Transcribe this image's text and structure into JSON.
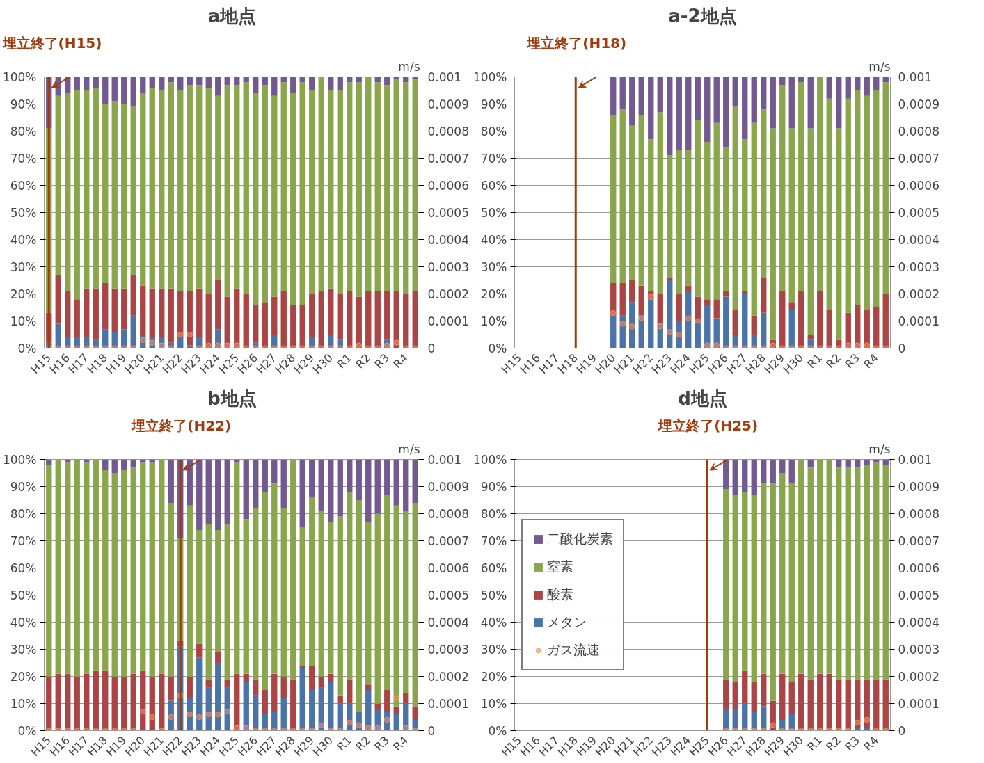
{
  "chart_data": [
    {
      "type": "bar",
      "title": "a地点",
      "y2label": "m/s",
      "stacked": true,
      "grid": "y",
      "legend": false,
      "categories": [
        "H15",
        null,
        "H16",
        null,
        "H17",
        null,
        "H18",
        null,
        "H19",
        null,
        "H20",
        null,
        "H21",
        null,
        "H22",
        null,
        "H23",
        null,
        "H24",
        null,
        "H25",
        null,
        "H26",
        null,
        "H27",
        null,
        "H28",
        null,
        "H29",
        null,
        "H30",
        null,
        "R1",
        null,
        "R2",
        null,
        "R3",
        null,
        "R4",
        null
      ],
      "ylim": [
        0,
        100
      ],
      "yticks": [
        {
          "value": 0,
          "label": "0%"
        },
        {
          "value": 10,
          "label": "10%"
        },
        {
          "value": 20,
          "label": "20%"
        },
        {
          "value": 30,
          "label": "30%"
        },
        {
          "value": 40,
          "label": "40%"
        },
        {
          "value": 50,
          "label": "50%"
        },
        {
          "value": 60,
          "label": "60%"
        },
        {
          "value": 70,
          "label": "70%"
        },
        {
          "value": 80,
          "label": "80%"
        },
        {
          "value": 90,
          "label": "90%"
        },
        {
          "value": 100,
          "label": "100%"
        }
      ],
      "y2lim": [
        0,
        0.001
      ],
      "y2ticks": [
        0,
        0.0001,
        0.0002,
        0.0003,
        0.0004,
        0.0005,
        0.0006,
        0.0007,
        0.0008,
        0.0009,
        0.001
      ],
      "ref_lines": [
        {
          "axis": "x",
          "value": "H15",
          "label": "埋立終了(H15)",
          "color": "#a33a0b"
        }
      ],
      "series": [
        {
          "color": "#4a74a8",
          "values": [
            2,
            9,
            4,
            4,
            4,
            3,
            7,
            6,
            7,
            12,
            5,
            4,
            4,
            2,
            4,
            1,
            4,
            null,
            7,
            null,
            null,
            null,
            2,
            null,
            5,
            null,
            0,
            0,
            4,
            0,
            5,
            3,
            0,
            0,
            0,
            0,
            3,
            0,
            null,
            0
          ]
        },
        {
          "color": "#ab4545",
          "values": [
            11,
            18,
            17,
            14,
            18,
            19,
            17,
            16,
            15,
            15,
            18,
            18,
            18,
            20,
            17,
            20,
            18,
            20,
            18,
            19,
            22,
            20,
            14,
            17,
            14,
            21,
            16,
            16,
            16,
            21,
            17,
            17,
            21,
            19,
            21,
            21,
            18,
            21,
            20,
            21
          ]
        },
        {
          "color": "#8aa64c",
          "values": [
            68,
            66,
            73,
            77,
            73,
            74,
            66,
            69,
            68,
            62,
            71,
            74,
            73,
            76,
            74,
            76,
            75,
            76,
            68,
            78,
            75,
            78,
            78,
            80,
            74,
            77,
            78,
            82,
            75,
            79,
            73,
            75,
            77,
            79,
            79,
            77,
            76,
            78,
            78,
            78
          ]
        },
        {
          "color": "#72598f",
          "values": [
            19,
            7,
            6,
            5,
            5,
            4,
            10,
            9,
            10,
            11,
            6,
            4,
            5,
            2,
            5,
            3,
            3,
            4,
            7,
            3,
            3,
            2,
            6,
            3,
            7,
            2,
            6,
            2,
            5,
            0,
            5,
            5,
            2,
            2,
            0,
            2,
            3,
            1,
            2,
            1
          ]
        },
        {
          "type": "scatter",
          "axis": "y2",
          "marker": "circle",
          "color": "#ff8080",
          "values": [
            0,
            0,
            0,
            0,
            0,
            0,
            0,
            0,
            0,
            0,
            3e-05,
            2e-05,
            1e-05,
            0,
            5e-05,
            5e-05,
            0,
            1e-05,
            1e-05,
            1e-05,
            1e-05,
            0,
            0,
            0,
            0,
            0,
            0,
            0,
            0,
            0,
            0,
            0,
            0,
            1e-05,
            0,
            0,
            1e-05,
            2e-05,
            0,
            0
          ]
        }
      ]
    },
    {
      "type": "bar",
      "title": "a-2地点",
      "y2label": "m/s",
      "stacked": true,
      "grid": "y",
      "legend": false,
      "categories": [
        "H15",
        null,
        "H16",
        null,
        "H17",
        null,
        "H18",
        null,
        "H19",
        null,
        "H20",
        null,
        "H21",
        null,
        "H22",
        null,
        "H23",
        null,
        "H24",
        null,
        "H25",
        null,
        "H26",
        null,
        "H27",
        null,
        "H28",
        null,
        "H29",
        null,
        "H30",
        null,
        "R1",
        null,
        "R2",
        null,
        "R3",
        null,
        "R4",
        null
      ],
      "ylim": [
        0,
        100
      ],
      "yticks": [
        {
          "value": 0,
          "label": "0%"
        },
        {
          "value": 10,
          "label": "10%"
        },
        {
          "value": 20,
          "label": "20%"
        },
        {
          "value": 30,
          "label": "30%"
        },
        {
          "value": 40,
          "label": "40%"
        },
        {
          "value": 50,
          "label": "50%"
        },
        {
          "value": 60,
          "label": "60%"
        },
        {
          "value": 70,
          "label": "70%"
        },
        {
          "value": 80,
          "label": "80%"
        },
        {
          "value": 90,
          "label": "90%"
        },
        {
          "value": 100,
          "label": "100%"
        }
      ],
      "y2lim": [
        0,
        0.001
      ],
      "y2ticks": [
        0,
        0.0001,
        0.0002,
        0.0003,
        0.0004,
        0.0005,
        0.0006,
        0.0007,
        0.0008,
        0.0009,
        0.001
      ],
      "ref_lines": [
        {
          "axis": "x",
          "value": "H18",
          "label": "埋立終了(H18)",
          "color": "#a33a0b"
        }
      ],
      "series": [
        {
          "color": "#4a74a8",
          "values": [
            null,
            null,
            null,
            null,
            null,
            null,
            null,
            null,
            null,
            null,
            12,
            12,
            17,
            12,
            18,
            9,
            25,
            10,
            21,
            10,
            16,
            11,
            19,
            5,
            20,
            5,
            13,
            0,
            0,
            14,
            0,
            3,
            0,
            0,
            0,
            0,
            0,
            0,
            0,
            0
          ]
        },
        {
          "color": "#ab4545",
          "values": [
            null,
            null,
            null,
            null,
            null,
            null,
            null,
            null,
            null,
            null,
            12,
            12,
            8,
            11,
            3,
            11,
            1,
            10,
            2,
            9,
            2,
            7,
            2,
            9,
            1,
            7,
            13,
            3,
            21,
            3,
            21,
            2,
            21,
            14,
            3,
            13,
            16,
            14,
            15,
            20
          ]
        },
        {
          "color": "#8aa64c",
          "values": [
            null,
            null,
            null,
            null,
            null,
            null,
            null,
            null,
            null,
            null,
            62,
            64,
            57,
            63,
            56,
            67,
            45,
            53,
            50,
            65,
            58,
            65,
            53,
            75,
            56,
            71,
            62,
            78,
            76,
            64,
            77,
            76,
            79,
            78,
            78,
            79,
            79,
            79,
            80,
            78
          ]
        },
        {
          "color": "#72598f",
          "values": [
            null,
            null,
            null,
            null,
            null,
            null,
            null,
            null,
            null,
            null,
            14,
            12,
            18,
            14,
            23,
            13,
            29,
            27,
            27,
            16,
            24,
            17,
            26,
            11,
            23,
            17,
            12,
            19,
            3,
            19,
            2,
            19,
            0,
            8,
            19,
            8,
            5,
            7,
            5,
            2
          ]
        },
        {
          "type": "scatter",
          "axis": "y2",
          "marker": "circle",
          "color": "#ff8080",
          "values": [
            null,
            null,
            null,
            null,
            null,
            null,
            null,
            null,
            null,
            null,
            0.00013,
            9e-05,
            8e-05,
            0.00011,
            0.00019,
            8e-05,
            6e-05,
            5e-05,
            0.00011,
            0.0001,
            1e-05,
            1e-05,
            0,
            0,
            0,
            0,
            0,
            1e-05,
            0,
            0,
            0,
            0,
            0,
            0,
            0,
            1e-05,
            1e-05,
            1e-05,
            0,
            0
          ]
        }
      ]
    },
    {
      "type": "bar",
      "title": "b地点",
      "y2label": "m/s",
      "stacked": true,
      "grid": "y",
      "legend": false,
      "categories": [
        "H15",
        null,
        "H16",
        null,
        "H17",
        null,
        "H18",
        null,
        "H19",
        null,
        "H20",
        null,
        "H21",
        null,
        "H22",
        null,
        "H23",
        null,
        "H24",
        null,
        "H25",
        null,
        "H26",
        null,
        "H27",
        null,
        "H28",
        null,
        "H29",
        null,
        "H30",
        null,
        "R1",
        null,
        "R2",
        null,
        "R3",
        null,
        "R4",
        null
      ],
      "ylim": [
        0,
        100
      ],
      "yticks": [
        {
          "value": 0,
          "label": "0%"
        },
        {
          "value": 10,
          "label": "10%"
        },
        {
          "value": 20,
          "label": "20%"
        },
        {
          "value": 30,
          "label": "30%"
        },
        {
          "value": 40,
          "label": "40%"
        },
        {
          "value": 50,
          "label": "50%"
        },
        {
          "value": 60,
          "label": "60%"
        },
        {
          "value": 70,
          "label": "70%"
        },
        {
          "value": 80,
          "label": "80%"
        },
        {
          "value": 90,
          "label": "90%"
        },
        {
          "value": 100,
          "label": "100%"
        }
      ],
      "y2lim": [
        0,
        0.001
      ],
      "y2ticks": [
        0,
        0.0001,
        0.0002,
        0.0003,
        0.0004,
        0.0005,
        0.0006,
        0.0007,
        0.0008,
        0.0009,
        0.001
      ],
      "ref_lines": [
        {
          "axis": "x",
          "value": "H22",
          "label": "埋立終了(H22)",
          "color": "#a33a0b"
        }
      ],
      "series": [
        {
          "color": "#4a74a8",
          "values": [
            0,
            0,
            0,
            0,
            0,
            0,
            0,
            0,
            0,
            0,
            0,
            0,
            0,
            11,
            31,
            12,
            27,
            16,
            25,
            16,
            0,
            18,
            13,
            6,
            7,
            12,
            0,
            23,
            15,
            16,
            18,
            10,
            10,
            7,
            15,
            8,
            7,
            6,
            10,
            4
          ]
        },
        {
          "color": "#ab4545",
          "values": [
            20,
            21,
            21,
            20,
            21,
            22,
            22,
            20,
            20,
            21,
            22,
            20,
            21,
            9,
            2,
            8,
            5,
            3,
            4,
            3,
            21,
            3,
            6,
            9,
            14,
            8,
            19,
            1,
            9,
            4,
            3,
            3,
            9,
            0,
            2,
            2,
            8,
            3,
            4,
            5
          ]
        },
        {
          "color": "#8aa64c",
          "values": [
            78,
            79,
            78,
            80,
            78,
            78,
            74,
            75,
            76,
            76,
            77,
            79,
            79,
            64,
            38,
            63,
            42,
            57,
            45,
            57,
            78,
            57,
            63,
            73,
            70,
            62,
            81,
            51,
            62,
            61,
            56,
            66,
            69,
            78,
            60,
            70,
            72,
            74,
            67,
            75
          ]
        },
        {
          "color": "#72598f",
          "values": [
            2,
            0,
            1,
            0,
            1,
            0,
            4,
            5,
            4,
            3,
            1,
            1,
            0,
            16,
            29,
            17,
            26,
            24,
            26,
            24,
            1,
            22,
            18,
            12,
            9,
            18,
            0,
            25,
            14,
            19,
            23,
            21,
            12,
            15,
            23,
            20,
            13,
            17,
            19,
            16
          ]
        },
        {
          "type": "scatter",
          "axis": "y2",
          "marker": "circle",
          "color": "#ff8080",
          "values": [
            0,
            0,
            0,
            0,
            0,
            0,
            0,
            0,
            0,
            0,
            7e-05,
            5e-05,
            0,
            5e-05,
            0.00013,
            6e-05,
            5e-05,
            6e-05,
            6e-05,
            7e-05,
            1e-05,
            1e-05,
            0,
            0,
            0,
            0,
            0,
            0,
            0,
            2e-05,
            0,
            0,
            3e-05,
            2e-05,
            1e-05,
            1e-05,
            4e-05,
            0.00012,
            1e-05,
            0
          ]
        }
      ]
    },
    {
      "type": "bar",
      "title": "d地点",
      "y2label": "m/s",
      "stacked": true,
      "grid": "y",
      "legend": "left",
      "categories": [
        "H15",
        null,
        "H16",
        null,
        "H17",
        null,
        "H18",
        null,
        "H19",
        null,
        "H20",
        null,
        "H21",
        null,
        "H22",
        null,
        "H23",
        null,
        "H24",
        null,
        "H25",
        null,
        "H26",
        null,
        "H27",
        null,
        "H28",
        null,
        "H29",
        null,
        "H30",
        null,
        "R1",
        null,
        "R2",
        null,
        "R3",
        null,
        "R4",
        null
      ],
      "ylim": [
        0,
        100
      ],
      "yticks": [
        {
          "value": 0,
          "label": "0%"
        },
        {
          "value": 10,
          "label": "10%"
        },
        {
          "value": 20,
          "label": "20%"
        },
        {
          "value": 30,
          "label": "30%"
        },
        {
          "value": 40,
          "label": "40%"
        },
        {
          "value": 50,
          "label": "50%"
        },
        {
          "value": 60,
          "label": "60%"
        },
        {
          "value": 70,
          "label": "70%"
        },
        {
          "value": 80,
          "label": "80%"
        },
        {
          "value": 90,
          "label": "90%"
        },
        {
          "value": 100,
          "label": "100%"
        }
      ],
      "y2lim": [
        0,
        0.001
      ],
      "y2ticks": [
        0,
        0.0001,
        0.0002,
        0.0003,
        0.0004,
        0.0005,
        0.0006,
        0.0007,
        0.0008,
        0.0009,
        0.001
      ],
      "ref_lines": [
        {
          "axis": "x",
          "value": "H25",
          "label": "埋立終了(H25)",
          "color": "#a33a0b"
        }
      ],
      "series": [
        {
          "name": "メタン",
          "color": "#4a74a8",
          "values": [
            null,
            null,
            null,
            null,
            null,
            null,
            null,
            null,
            null,
            null,
            null,
            null,
            null,
            null,
            null,
            null,
            null,
            null,
            null,
            null,
            null,
            null,
            8,
            8,
            10,
            7,
            9,
            0,
            4,
            6,
            0,
            0,
            0,
            0,
            0,
            0,
            1,
            1,
            0,
            0
          ]
        },
        {
          "name": "酸素",
          "color": "#ab4545",
          "values": [
            null,
            null,
            null,
            null,
            null,
            null,
            null,
            null,
            null,
            null,
            null,
            null,
            null,
            null,
            null,
            null,
            null,
            null,
            null,
            null,
            null,
            null,
            11,
            10,
            12,
            11,
            12,
            11,
            17,
            12,
            21,
            19,
            21,
            21,
            19,
            19,
            18,
            18,
            19,
            19
          ]
        },
        {
          "name": "窒素",
          "color": "#8aa64c",
          "values": [
            null,
            null,
            null,
            null,
            null,
            null,
            null,
            null,
            null,
            null,
            null,
            null,
            null,
            null,
            null,
            null,
            null,
            null,
            null,
            null,
            null,
            null,
            70,
            69,
            66,
            69,
            70,
            80,
            74,
            73,
            79,
            78,
            79,
            79,
            78,
            78,
            78,
            79,
            80,
            79
          ]
        },
        {
          "name": "二酸化炭素",
          "color": "#72598f",
          "values": [
            null,
            null,
            null,
            null,
            null,
            null,
            null,
            null,
            null,
            null,
            null,
            null,
            null,
            null,
            null,
            null,
            null,
            null,
            null,
            null,
            null,
            null,
            11,
            13,
            12,
            13,
            9,
            9,
            5,
            9,
            0,
            3,
            0,
            0,
            3,
            3,
            3,
            2,
            1,
            2
          ]
        },
        {
          "name": "ガス流速",
          "type": "scatter",
          "axis": "y2",
          "marker": "circle",
          "color": "#ff8080",
          "values": [
            null,
            null,
            null,
            null,
            null,
            null,
            null,
            null,
            null,
            null,
            null,
            null,
            null,
            null,
            null,
            null,
            null,
            null,
            null,
            null,
            null,
            null,
            0,
            0,
            0,
            0,
            0,
            2e-05,
            0,
            0,
            0,
            0,
            0,
            0,
            0,
            0,
            3e-05,
            4e-05,
            0,
            0
          ]
        }
      ]
    }
  ]
}
